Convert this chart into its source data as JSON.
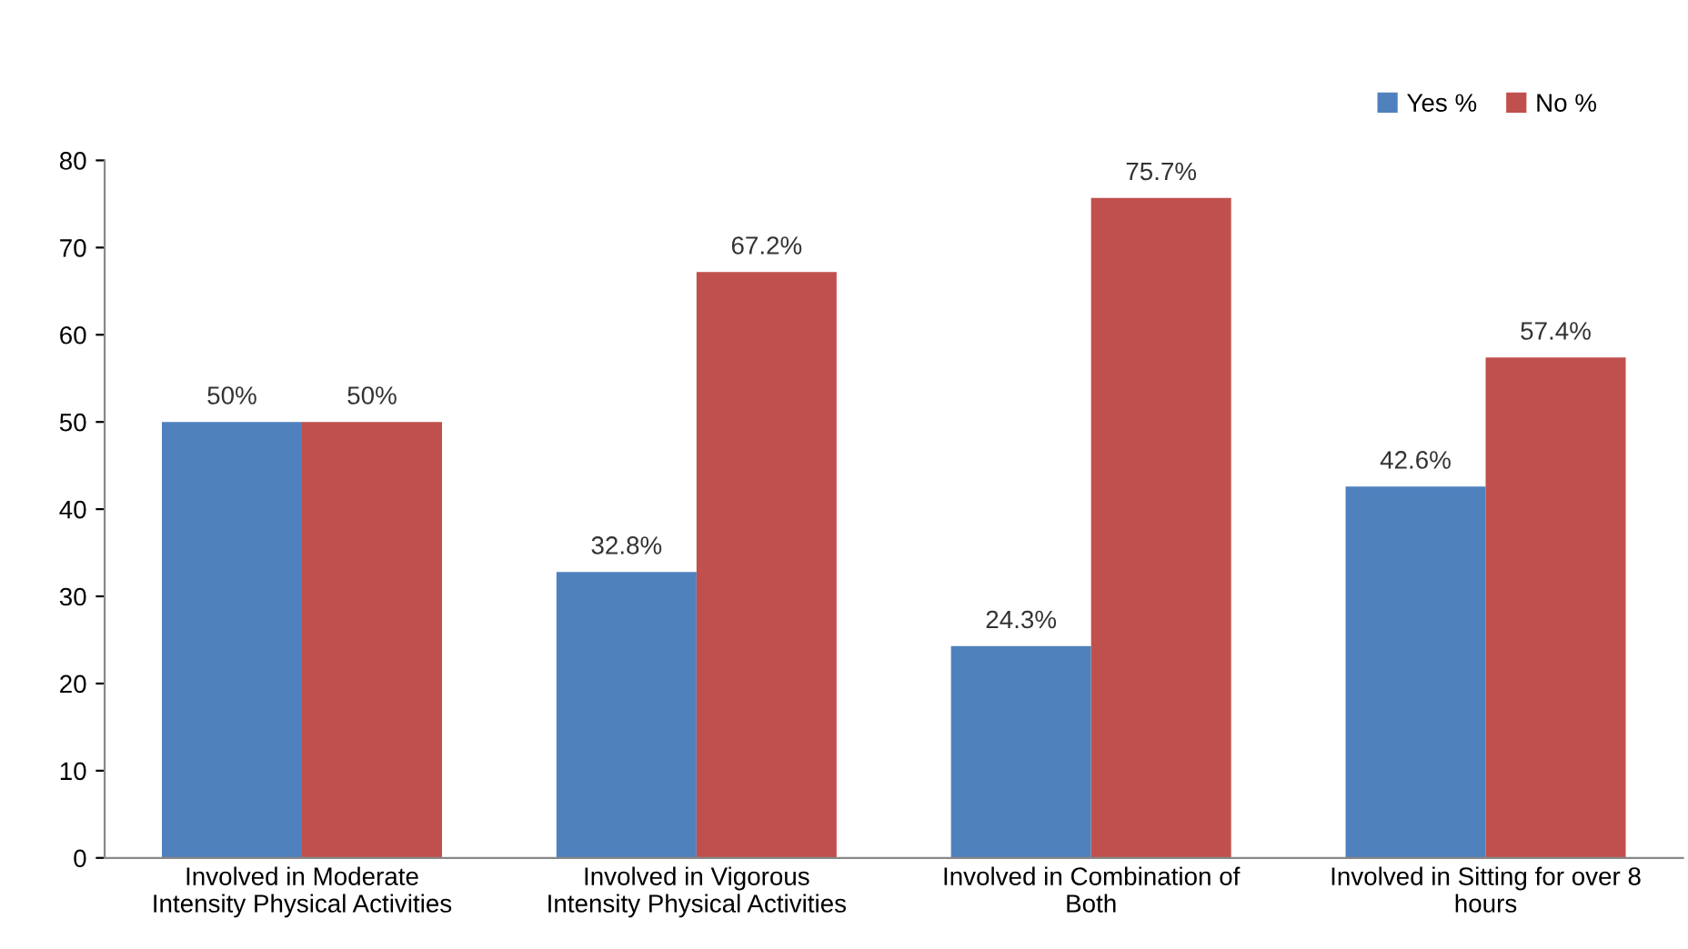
{
  "chart_data": {
    "type": "bar",
    "categories": [
      "Involved in Moderate\nIntensity Physical Activities",
      "Involved in Vigorous\nIntensity Physical Activities",
      "Involved in Combination of\nBoth",
      "Involved in Sitting for over 8\nhours"
    ],
    "series": [
      {
        "name": "Yes %",
        "color": "#4f81bd",
        "values": [
          50,
          32.8,
          24.3,
          42.6
        ],
        "value_labels": [
          "50%",
          "32.8%",
          "24.3%",
          "42.6%"
        ]
      },
      {
        "name": "No %",
        "color": "#c0504d",
        "values": [
          50,
          67.2,
          75.7,
          57.4
        ],
        "value_labels": [
          "50%",
          "67.2%",
          "75.7%",
          "57.4%"
        ]
      }
    ],
    "ylim": [
      0,
      80
    ],
    "yticks": [
      0,
      10,
      20,
      30,
      40,
      50,
      60,
      70,
      80
    ],
    "grid": false,
    "legend": "top right"
  }
}
